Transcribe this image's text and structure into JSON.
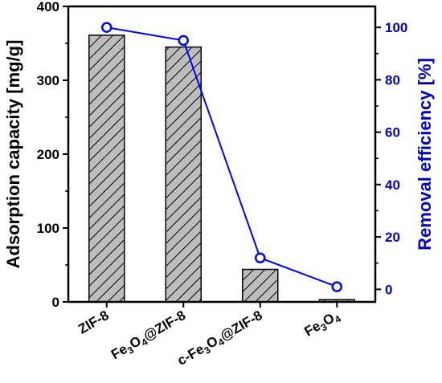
{
  "chart_data": {
    "type": "bar",
    "categories": [
      "ZIF-8",
      "Fe3O4@ZIF-8",
      "c-Fe3O4@ZIF-8",
      "Fe3O4"
    ],
    "category_labels": [
      [
        {
          "t": "ZIF-8",
          "sub": false
        }
      ],
      [
        {
          "t": "Fe",
          "sub": false
        },
        {
          "t": "3",
          "sub": true
        },
        {
          "t": "O",
          "sub": false
        },
        {
          "t": "4",
          "sub": true
        },
        {
          "t": "@ZIF-8",
          "sub": false
        }
      ],
      [
        {
          "t": "c-Fe",
          "sub": false
        },
        {
          "t": "3",
          "sub": true
        },
        {
          "t": "O",
          "sub": false
        },
        {
          "t": "4",
          "sub": true
        },
        {
          "t": "@ZIF-8",
          "sub": false
        }
      ],
      [
        {
          "t": "Fe",
          "sub": false
        },
        {
          "t": "3",
          "sub": true
        },
        {
          "t": "O",
          "sub": false
        },
        {
          "t": "4",
          "sub": true
        }
      ]
    ],
    "bars": {
      "values": [
        361,
        345,
        44,
        3
      ]
    },
    "line": {
      "values": [
        100,
        95,
        12,
        1
      ]
    },
    "left_axis": {
      "label": "Adsorption capacity [mg/g]",
      "ylim": [
        0,
        400
      ],
      "ticks": [
        0,
        100,
        200,
        300,
        400
      ]
    },
    "right_axis": {
      "label": "Removal efficiency  [%]",
      "ylim": [
        -4.8,
        108
      ],
      "ticks": [
        0,
        20,
        40,
        60,
        80,
        100
      ]
    },
    "colors": {
      "bar_fill": "#bdbdbd",
      "hatch": "#000000",
      "line": "#0000ff",
      "right_axis": "#0000cc"
    }
  }
}
